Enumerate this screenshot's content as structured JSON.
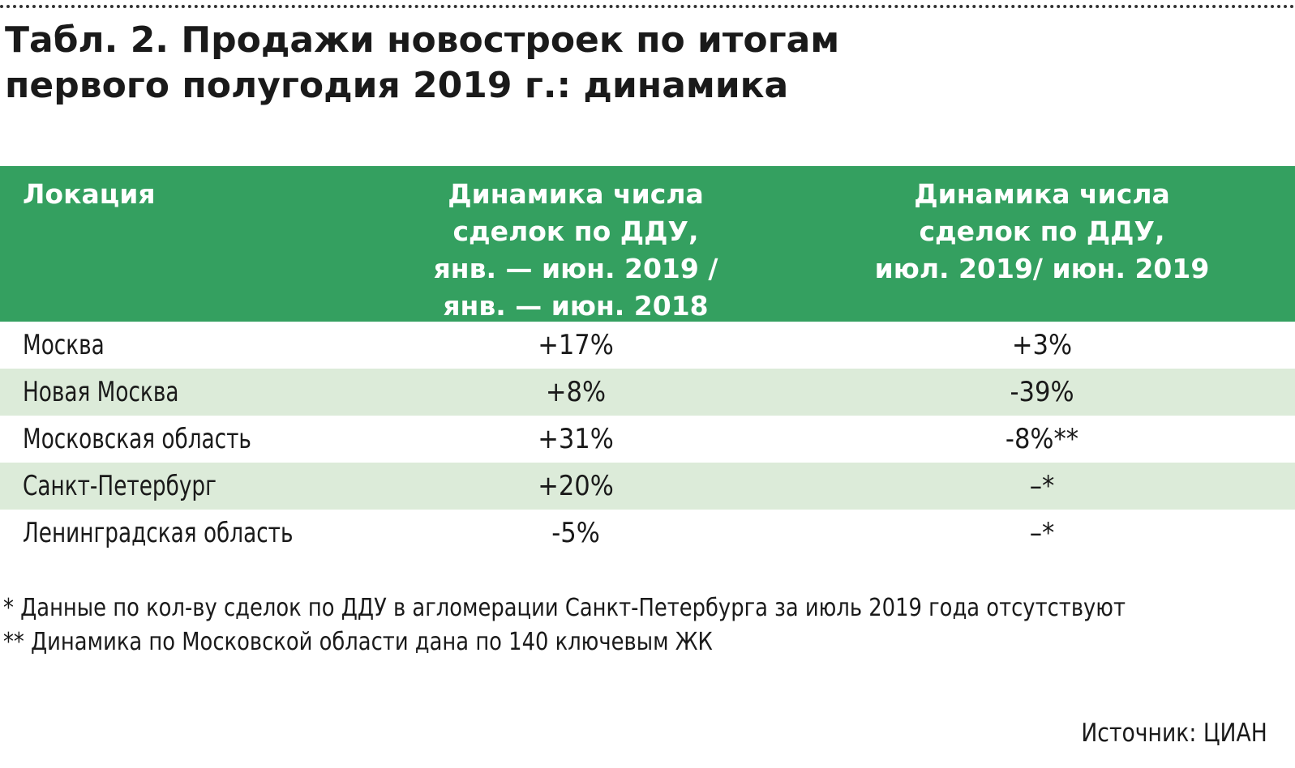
{
  "title": {
    "line1": "Табл. 2. Продажи новостроек по итогам",
    "line2": "первого полугодия 2019 г.: динамика"
  },
  "table": {
    "headers": {
      "location": "Локация",
      "col1": [
        "Динамика числа",
        "сделок по ДДУ,",
        "янв. — июн. 2019 /",
        "янв. — июн. 2018"
      ],
      "col2": [
        "Динамика числа",
        "сделок по ДДУ,",
        "июл. 2019/ июн. 2019"
      ]
    },
    "rows": [
      {
        "location": "Москва",
        "col1": "+17%",
        "col2": "+3%"
      },
      {
        "location": "Новая Москва",
        "col1": "+8%",
        "col2": "-39%"
      },
      {
        "location": "Московская область",
        "col1": "+31%",
        "col2": "-8%**"
      },
      {
        "location": "Санкт-Петербург",
        "col1": "+20%",
        "col2": "–*"
      },
      {
        "location": "Ленинградская область",
        "col1": "-5%",
        "col2": "–*"
      }
    ],
    "colors": {
      "header_bg": "#34a060",
      "alt_row_bg": "#dcebd9"
    }
  },
  "footnotes": [
    "* Данные по кол-ву сделок по ДДУ в агломерации Санкт-Петербурга за июль 2019 года отсутствуют",
    "** Динамика по Московской области дана по 140 ключевым ЖК"
  ],
  "source": "Источник: ЦИАН"
}
